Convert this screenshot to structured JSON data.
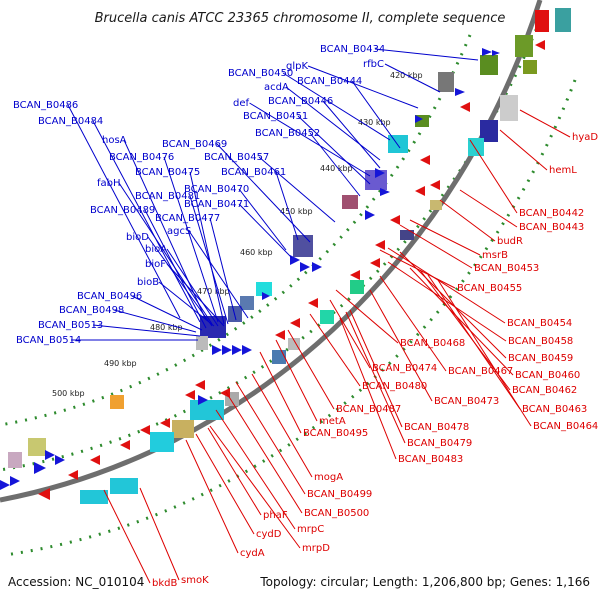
{
  "title": "Brucella canis ATCC 23365 chromosome II, complete sequence",
  "footer": {
    "accession": "Accession: NC_010104",
    "summary": "Topology: circular; Length: 1,206,800 bp; Genes: 1,166"
  },
  "colors": {
    "blue_labels": "#0000cc",
    "red_labels": "#dd0000",
    "backbone": "#6e6e6e",
    "dots": "#2e8b2e",
    "forward_features": "#1515d8",
    "reverse_features": "#e01010"
  },
  "ticks": [
    "420 kbp",
    "430 kbp",
    "440 kbp",
    "450 kbp",
    "460 kbp",
    "470 kbp",
    "480 kbp",
    "490 kbp",
    "500 kbp"
  ],
  "labels_left": [
    "BCAN_B0434",
    "rfbC",
    "glpK",
    "BCAN_B0450",
    "BCAN_B0444",
    "acdA",
    "def",
    "BCAN_B0446",
    "BCAN_B0451",
    "BCAN_B0486",
    "BCAN_B0484",
    "BCAN_B0452",
    "hosA",
    "BCAN_B0469",
    "BCAN_B0476",
    "BCAN_B0457",
    "BCAN_B0475",
    "BCAN_B0461",
    "fabH",
    "BCAN_B0481",
    "BCAN_B0470",
    "BCAN_B0489",
    "BCAN_B0471",
    "BCAN_B0477",
    "agcS",
    "bioD",
    "bioA",
    "bioF",
    "bioB",
    "BCAN_B0496",
    "BCAN_B0498",
    "BCAN_B0513",
    "BCAN_B0514"
  ],
  "labels_right": [
    "hyaD",
    "hemL",
    "BCAN_B0442",
    "BCAN_B0443",
    "budR",
    "msrB",
    "BCAN_B0453",
    "BCAN_B0455",
    "BCAN_B0454",
    "BCAN_B0468",
    "BCAN_B0458",
    "BCAN_B0459",
    "BCAN_B0474",
    "BCAN_B0467",
    "BCAN_B0460",
    "BCAN_B0480",
    "BCAN_B0462",
    "BCAN_B0473",
    "BCAN_B0463",
    "BCAN_B0487",
    "BCAN_B0464",
    "metA",
    "BCAN_B0478",
    "BCAN_B0495",
    "BCAN_B0479",
    "BCAN_B0483",
    "mogA",
    "BCAN_B0499",
    "phaF",
    "BCAN_B0500",
    "cydD",
    "mrpC",
    "mrpD",
    "cydA",
    "smoK",
    "bkdB"
  ]
}
